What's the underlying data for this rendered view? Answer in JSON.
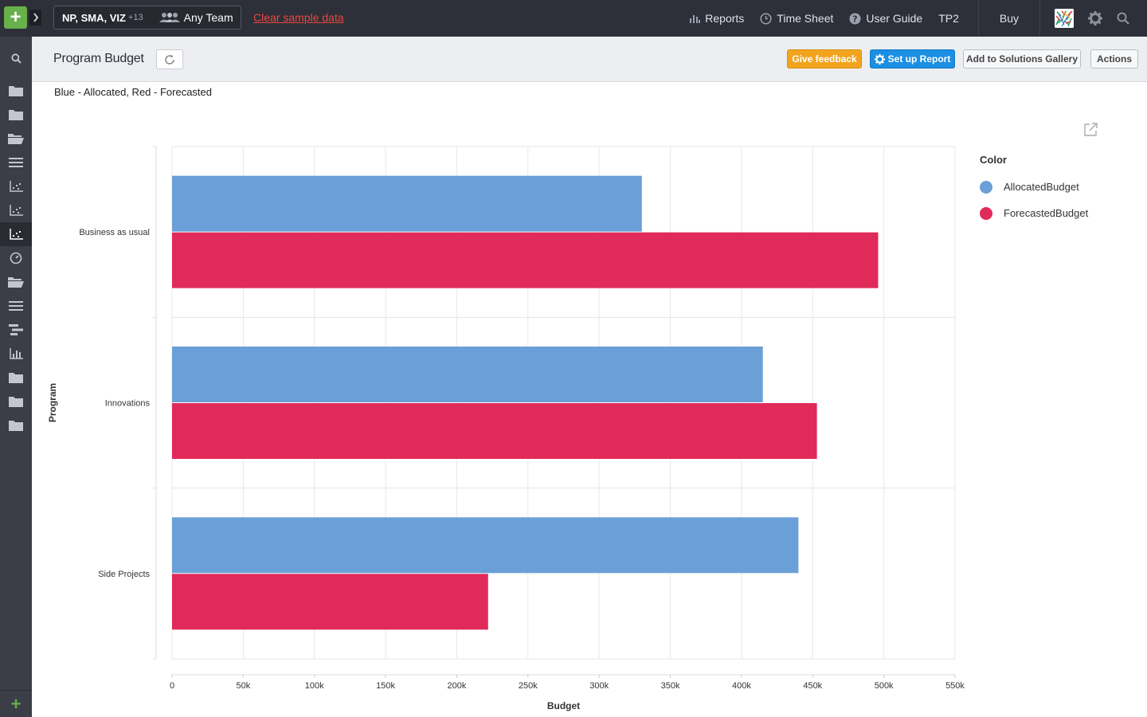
{
  "topbar": {
    "workspace_projects": "NP, SMA, VIZ",
    "workspace_more": "+13",
    "team_label": "Any Team",
    "clear_link": "Clear sample data",
    "nav": {
      "reports": "Reports",
      "timesheet": "Time Sheet",
      "user_guide": "User Guide",
      "tp2": "TP2",
      "buy": "Buy"
    }
  },
  "header": {
    "title": "Program Budget",
    "give_feedback": "Give feedback",
    "setup_report": "Set up Report",
    "add_gallery": "Add to Solutions Gallery",
    "actions": "Actions"
  },
  "subtitle": "Blue - Allocated, Red - Forecasted",
  "legend": {
    "title": "Color",
    "items": [
      {
        "label": "AllocatedBudget",
        "color": "#6b9fd7"
      },
      {
        "label": "ForecastedBudget",
        "color": "#e02a5a"
      }
    ]
  },
  "chart_data": {
    "type": "bar",
    "orientation": "horizontal",
    "categories": [
      "Business as usual",
      "Innovations",
      "Side Projects"
    ],
    "series": [
      {
        "name": "AllocatedBudget",
        "color": "#6b9fd7",
        "values": [
          330000,
          415000,
          440000
        ]
      },
      {
        "name": "ForecastedBudget",
        "color": "#e02a5a",
        "values": [
          496000,
          453000,
          222000
        ]
      }
    ],
    "xlabel": "Budget",
    "ylabel": "Program",
    "xlim": [
      0,
      550000
    ],
    "xticks": [
      {
        "value": 0,
        "label": "0"
      },
      {
        "value": 50000,
        "label": "50k"
      },
      {
        "value": 100000,
        "label": "100k"
      },
      {
        "value": 150000,
        "label": "150k"
      },
      {
        "value": 200000,
        "label": "200k"
      },
      {
        "value": 250000,
        "label": "250k"
      },
      {
        "value": 300000,
        "label": "300k"
      },
      {
        "value": 350000,
        "label": "350k"
      },
      {
        "value": 400000,
        "label": "400k"
      },
      {
        "value": 450000,
        "label": "450k"
      },
      {
        "value": 500000,
        "label": "500k"
      },
      {
        "value": 550000,
        "label": "550k"
      }
    ],
    "grid": true,
    "legend_position": "right"
  },
  "icons": {
    "sidebar": [
      "search-icon",
      "folder-icon",
      "folder-icon",
      "folder-open-icon",
      "list-icon",
      "chart-icon",
      "chart-icon",
      "chart-icon",
      "dashboard-icon",
      "folder-open-icon",
      "list-icon",
      "timeline-icon",
      "bar-chart-icon",
      "folder-icon",
      "folder-icon",
      "folder-icon"
    ]
  }
}
